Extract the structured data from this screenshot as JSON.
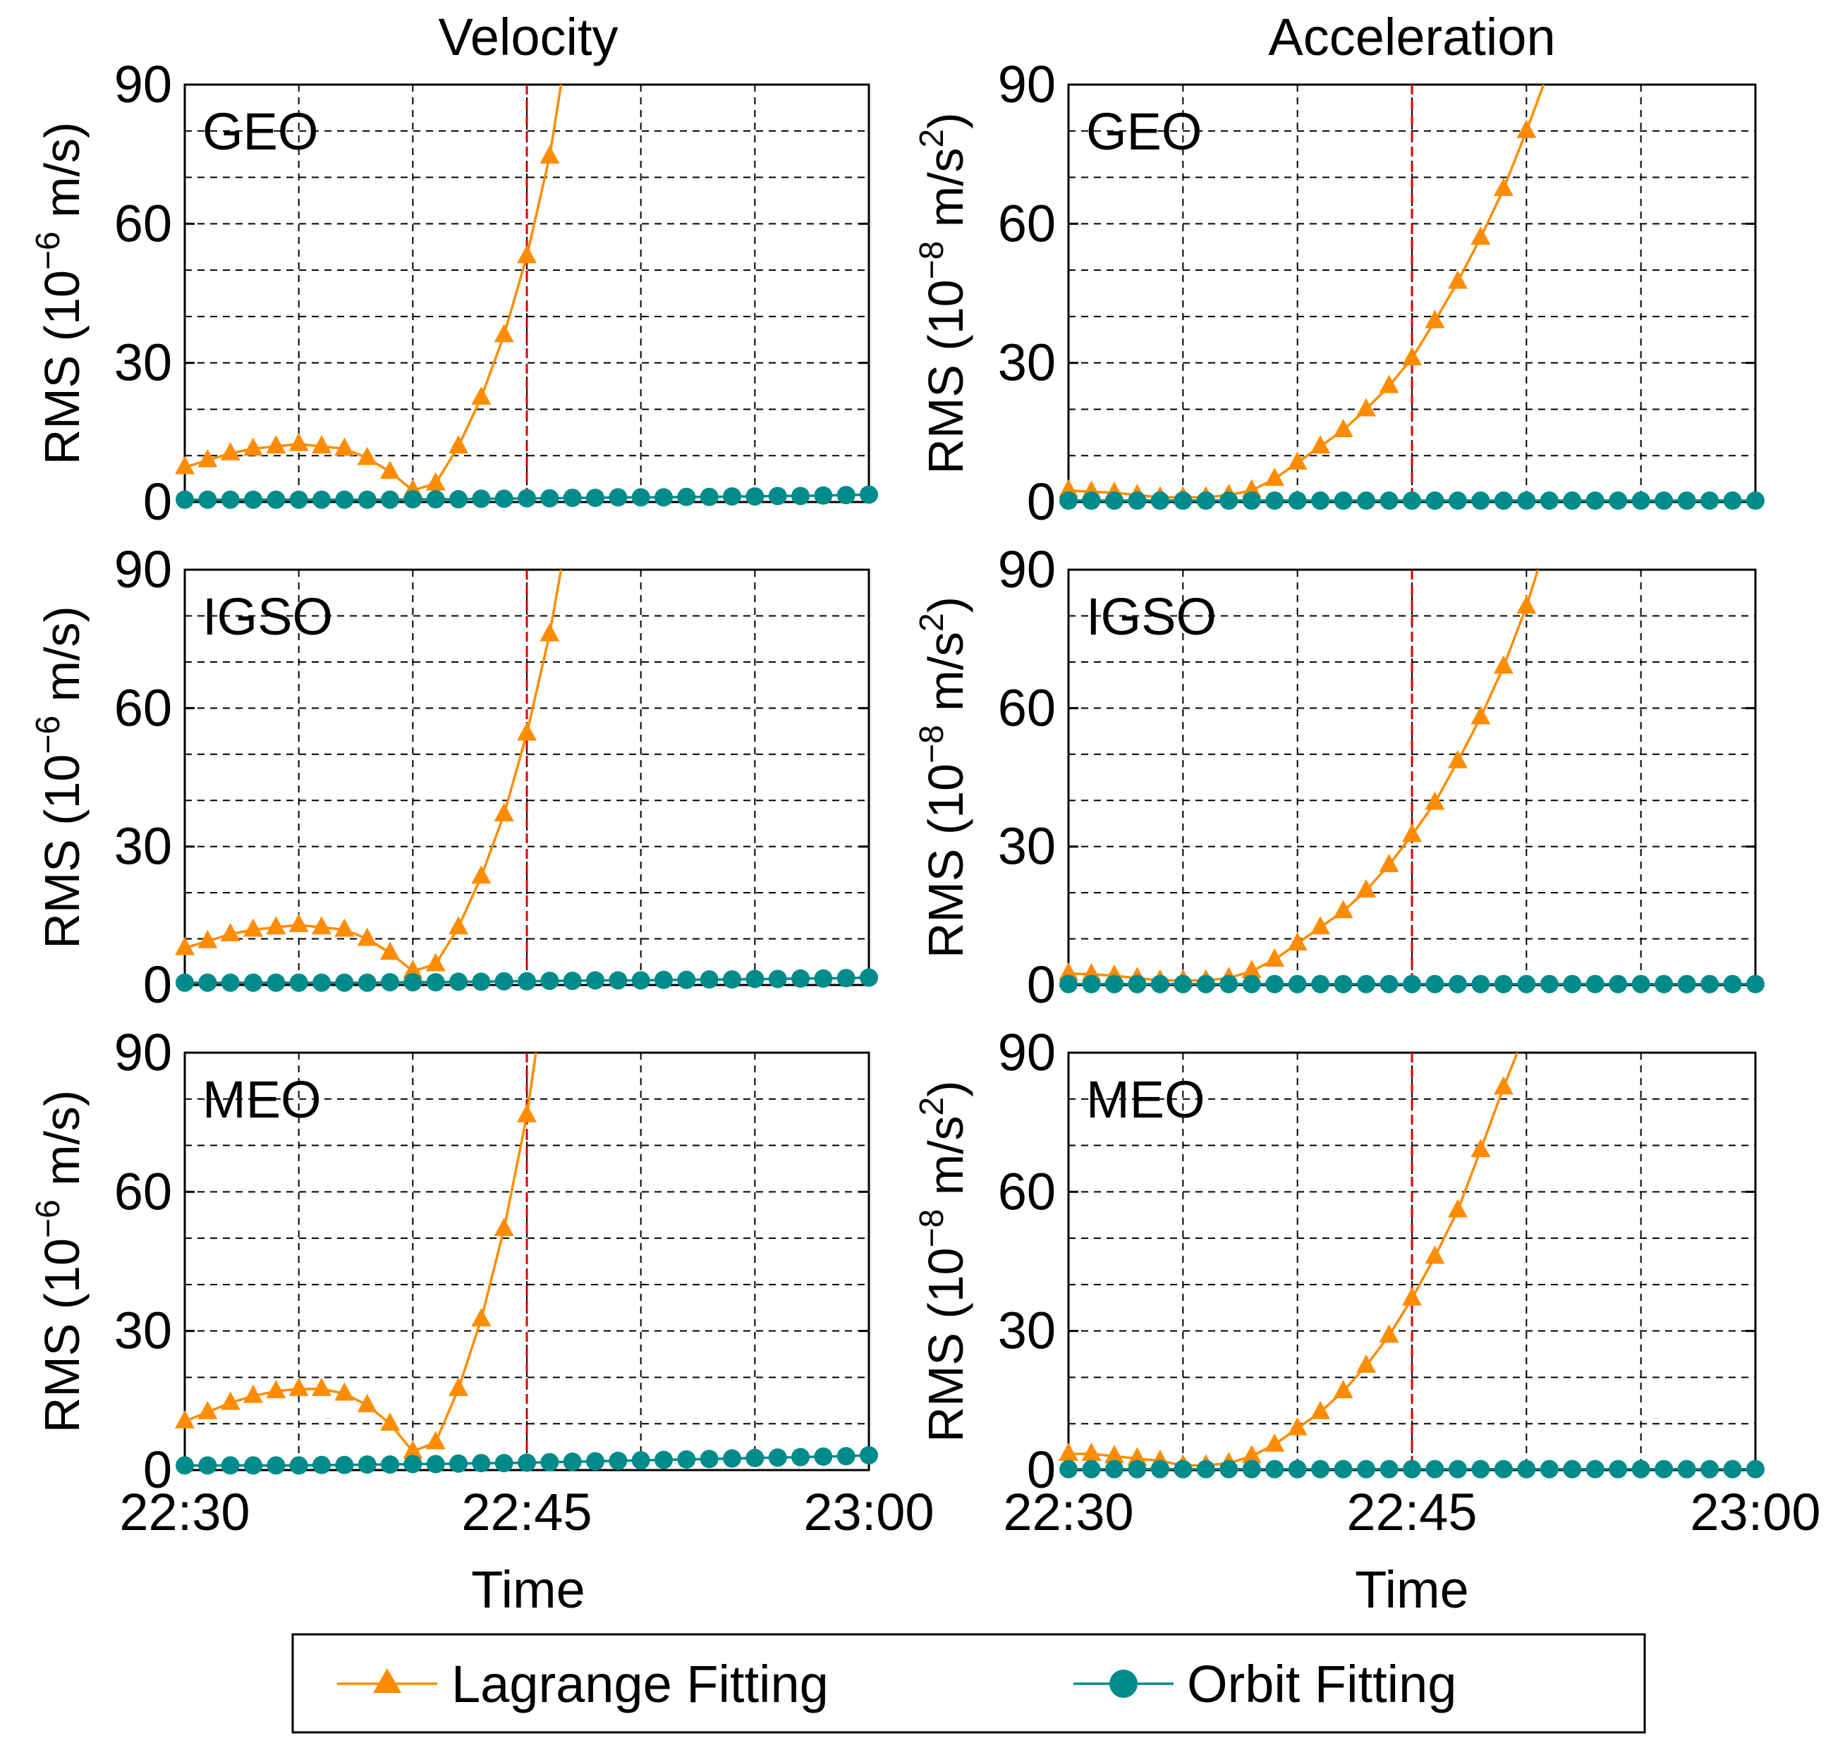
{
  "figure": {
    "column_titles": [
      "Velocity",
      "Acceleration"
    ],
    "x_title": "Time",
    "x_tick_labels": [
      "22:30",
      "22:45",
      "23:00"
    ],
    "y_tick_labels": [
      "0",
      "30",
      "60",
      "90"
    ],
    "y_label_velocity": {
      "base": "RMS (10",
      "exp": "−6",
      "unit": " m/s)"
    },
    "y_label_acceleration": {
      "base": "RMS (10",
      "exp": "−8",
      "unit": " m/s",
      "unit_exp": "2",
      "close": ")"
    },
    "legend": {
      "lagrange": "Lagrange Fitting",
      "orbit": "Orbit Fitting"
    },
    "colors": {
      "lagrange": "#FF8C00",
      "orbit": "#008B8B",
      "event_line": "#E00000",
      "grid": "#000000"
    }
  },
  "chart_data": [
    {
      "type": "line",
      "panel": "Velocity GEO",
      "title": "Velocity",
      "label": "GEO",
      "xlabel": "",
      "ylabel": "RMS (10^-6 m/s)",
      "ylim": [
        0,
        90
      ],
      "xlim": [
        0,
        30
      ],
      "event_x": 15,
      "series": [
        {
          "name": "Lagrange Fitting",
          "marker": "triangle",
          "x": [
            0,
            1,
            2,
            3,
            4,
            5,
            6,
            7,
            8,
            9,
            10,
            11,
            12,
            13,
            14,
            15,
            16,
            16.5
          ],
          "values": [
            7.5,
            9,
            10.5,
            11.5,
            12,
            12.5,
            12,
            11.5,
            9.5,
            6.5,
            2.5,
            4,
            12,
            22.5,
            36,
            53,
            74.5,
            90
          ],
          "marker_x": [
            0,
            1,
            2,
            3,
            4,
            5,
            6,
            7,
            8,
            9,
            10,
            11,
            12,
            13,
            14,
            15,
            16
          ]
        },
        {
          "name": "Orbit Fitting",
          "marker": "circle",
          "x": [
            0,
            1,
            2,
            3,
            4,
            5,
            6,
            7,
            8,
            9,
            10,
            11,
            12,
            13,
            14,
            15,
            16,
            17,
            18,
            19,
            20,
            21,
            22,
            23,
            24,
            25,
            26,
            27,
            28,
            29,
            30
          ],
          "values": [
            0.5,
            0.5,
            0.5,
            0.5,
            0.5,
            0.5,
            0.5,
            0.5,
            0.5,
            0.5,
            0.6,
            0.6,
            0.6,
            0.7,
            0.7,
            0.8,
            0.8,
            0.9,
            0.9,
            1,
            1,
            1,
            1.1,
            1.1,
            1.2,
            1.2,
            1.3,
            1.3,
            1.4,
            1.5,
            1.6
          ]
        }
      ]
    },
    {
      "type": "line",
      "panel": "Acceleration GEO",
      "title": "Acceleration",
      "label": "GEO",
      "xlabel": "",
      "ylabel": "RMS (10^-8 m/s^2)",
      "ylim": [
        0,
        90
      ],
      "xlim": [
        0,
        30
      ],
      "event_x": 15,
      "series": [
        {
          "name": "Lagrange Fitting",
          "marker": "triangle",
          "x": [
            0,
            1,
            2,
            3,
            4,
            5,
            6,
            7,
            8,
            9,
            10,
            11,
            12,
            13,
            14,
            15,
            16,
            17,
            18,
            19,
            20,
            20.75
          ],
          "values": [
            2.5,
            2.2,
            2,
            1.5,
            1,
            1,
            1,
            1.5,
            2.5,
            5,
            8.5,
            12,
            15.5,
            20,
            25,
            31,
            39,
            47.5,
            57,
            67.5,
            80,
            90
          ],
          "marker_x": [
            0,
            1,
            2,
            3,
            4,
            5,
            6,
            7,
            8,
            9,
            10,
            11,
            12,
            13,
            14,
            15,
            16,
            17,
            18,
            19,
            20
          ]
        },
        {
          "name": "Orbit Fitting",
          "marker": "circle",
          "x": [
            0,
            1,
            2,
            3,
            4,
            5,
            6,
            7,
            8,
            9,
            10,
            11,
            12,
            13,
            14,
            15,
            16,
            17,
            18,
            19,
            20,
            21,
            22,
            23,
            24,
            25,
            26,
            27,
            28,
            29,
            30
          ],
          "values": [
            0.3,
            0.3,
            0.3,
            0.3,
            0.3,
            0.3,
            0.3,
            0.3,
            0.3,
            0.3,
            0.3,
            0.3,
            0.3,
            0.3,
            0.3,
            0.3,
            0.3,
            0.3,
            0.3,
            0.3,
            0.3,
            0.3,
            0.3,
            0.3,
            0.3,
            0.3,
            0.3,
            0.3,
            0.3,
            0.3,
            0.3
          ]
        }
      ]
    },
    {
      "type": "line",
      "panel": "Velocity IGSO",
      "label": "IGSO",
      "xlabel": "",
      "ylabel": "RMS (10^-6 m/s)",
      "ylim": [
        0,
        90
      ],
      "xlim": [
        0,
        30
      ],
      "event_x": 15,
      "series": [
        {
          "name": "Lagrange Fitting",
          "marker": "triangle",
          "x": [
            0,
            1,
            2,
            3,
            4,
            5,
            6,
            7,
            8,
            9,
            10,
            11,
            12,
            13,
            14,
            15,
            16,
            16.5
          ],
          "values": [
            8,
            9.5,
            11,
            12,
            12.5,
            13,
            12.5,
            12,
            10,
            7,
            3,
            4.5,
            12.5,
            23.5,
            37,
            54.5,
            76,
            90
          ],
          "marker_x": [
            0,
            1,
            2,
            3,
            4,
            5,
            6,
            7,
            8,
            9,
            10,
            11,
            12,
            13,
            14,
            15,
            16
          ]
        },
        {
          "name": "Orbit Fitting",
          "marker": "circle",
          "x": [
            0,
            1,
            2,
            3,
            4,
            5,
            6,
            7,
            8,
            9,
            10,
            11,
            12,
            13,
            14,
            15,
            16,
            17,
            18,
            19,
            20,
            21,
            22,
            23,
            24,
            25,
            26,
            27,
            28,
            29,
            30
          ],
          "values": [
            0.5,
            0.5,
            0.5,
            0.5,
            0.5,
            0.5,
            0.5,
            0.5,
            0.5,
            0.6,
            0.6,
            0.6,
            0.7,
            0.7,
            0.8,
            0.8,
            0.9,
            0.9,
            1,
            1,
            1,
            1.1,
            1.1,
            1.2,
            1.2,
            1.3,
            1.3,
            1.4,
            1.4,
            1.5,
            1.6
          ]
        }
      ]
    },
    {
      "type": "line",
      "panel": "Acceleration IGSO",
      "label": "IGSO",
      "xlabel": "",
      "ylabel": "RMS (10^-8 m/s^2)",
      "ylim": [
        0,
        90
      ],
      "xlim": [
        0,
        30
      ],
      "event_x": 15,
      "series": [
        {
          "name": "Lagrange Fitting",
          "marker": "triangle",
          "x": [
            0,
            1,
            2,
            3,
            4,
            5,
            6,
            7,
            8,
            9,
            10,
            11,
            12,
            13,
            14,
            15,
            16,
            17,
            18,
            19,
            20,
            20.5
          ],
          "values": [
            2.5,
            2.3,
            2,
            1.5,
            1,
            1,
            1,
            1.5,
            3,
            5.5,
            9,
            12.5,
            16,
            20.5,
            26,
            32.5,
            39.5,
            48.5,
            58,
            69,
            82,
            90
          ],
          "marker_x": [
            0,
            1,
            2,
            3,
            4,
            5,
            6,
            7,
            8,
            9,
            10,
            11,
            12,
            13,
            14,
            15,
            16,
            17,
            18,
            19,
            20
          ]
        },
        {
          "name": "Orbit Fitting",
          "marker": "circle",
          "x": [
            0,
            1,
            2,
            3,
            4,
            5,
            6,
            7,
            8,
            9,
            10,
            11,
            12,
            13,
            14,
            15,
            16,
            17,
            18,
            19,
            20,
            21,
            22,
            23,
            24,
            25,
            26,
            27,
            28,
            29,
            30
          ],
          "values": [
            0.2,
            0.2,
            0.2,
            0.2,
            0.2,
            0.2,
            0.2,
            0.2,
            0.2,
            0.2,
            0.2,
            0.2,
            0.2,
            0.2,
            0.2,
            0.2,
            0.2,
            0.2,
            0.2,
            0.2,
            0.2,
            0.2,
            0.2,
            0.2,
            0.2,
            0.2,
            0.2,
            0.2,
            0.2,
            0.2,
            0.2
          ]
        }
      ]
    },
    {
      "type": "line",
      "panel": "Velocity MEO",
      "label": "MEO",
      "xlabel": "Time",
      "ylabel": "RMS (10^-6 m/s)",
      "ylim": [
        0,
        90
      ],
      "xlim": [
        0,
        30
      ],
      "event_x": 15,
      "series": [
        {
          "name": "Lagrange Fitting",
          "marker": "triangle",
          "x": [
            0,
            1,
            2,
            3,
            4,
            5,
            6,
            7,
            8,
            9,
            10,
            11,
            12,
            13,
            14,
            15,
            15.4
          ],
          "values": [
            10.5,
            12.5,
            14.5,
            16,
            17,
            17.5,
            17.5,
            16.5,
            14,
            10,
            4,
            6,
            17.5,
            32.5,
            52,
            76.5,
            90
          ],
          "marker_x": [
            0,
            1,
            2,
            3,
            4,
            5,
            6,
            7,
            8,
            9,
            10,
            11,
            12,
            13,
            14,
            15
          ]
        },
        {
          "name": "Orbit Fitting",
          "marker": "circle",
          "x": [
            0,
            1,
            2,
            3,
            4,
            5,
            6,
            7,
            8,
            9,
            10,
            11,
            12,
            13,
            14,
            15,
            16,
            17,
            18,
            19,
            20,
            21,
            22,
            23,
            24,
            25,
            26,
            27,
            28,
            29,
            30
          ],
          "values": [
            1,
            1,
            1,
            1,
            1,
            1,
            1.1,
            1.1,
            1.2,
            1.2,
            1.3,
            1.3,
            1.4,
            1.5,
            1.5,
            1.6,
            1.7,
            1.8,
            1.9,
            2,
            2.1,
            2.2,
            2.3,
            2.4,
            2.5,
            2.6,
            2.7,
            2.8,
            2.9,
            3,
            3.2
          ]
        }
      ]
    },
    {
      "type": "line",
      "panel": "Acceleration MEO",
      "label": "MEO",
      "xlabel": "Time",
      "ylabel": "RMS (10^-8 m/s^2)",
      "ylim": [
        0,
        90
      ],
      "xlim": [
        0,
        30
      ],
      "event_x": 15,
      "series": [
        {
          "name": "Lagrange Fitting",
          "marker": "triangle",
          "x": [
            0,
            1,
            2,
            3,
            4,
            5,
            6,
            7,
            8,
            9,
            10,
            11,
            12,
            13,
            14,
            15,
            16,
            17,
            18,
            19,
            19.6
          ],
          "values": [
            3.5,
            3.5,
            3,
            2.5,
            2,
            1,
            1,
            1.5,
            3,
            5.5,
            9,
            12.5,
            17,
            22.5,
            29,
            37,
            46,
            56,
            69,
            82.5,
            90
          ],
          "marker_x": [
            0,
            1,
            2,
            3,
            4,
            5,
            6,
            7,
            8,
            9,
            10,
            11,
            12,
            13,
            14,
            15,
            16,
            17,
            18,
            19
          ]
        },
        {
          "name": "Orbit Fitting",
          "marker": "circle",
          "x": [
            0,
            1,
            2,
            3,
            4,
            5,
            6,
            7,
            8,
            9,
            10,
            11,
            12,
            13,
            14,
            15,
            16,
            17,
            18,
            19,
            20,
            21,
            22,
            23,
            24,
            25,
            26,
            27,
            28,
            29,
            30
          ],
          "values": [
            0.2,
            0.2,
            0.2,
            0.2,
            0.2,
            0.2,
            0.2,
            0.2,
            0.2,
            0.2,
            0.2,
            0.2,
            0.2,
            0.2,
            0.2,
            0.2,
            0.2,
            0.2,
            0.2,
            0.2,
            0.2,
            0.2,
            0.2,
            0.2,
            0.2,
            0.2,
            0.2,
            0.2,
            0.2,
            0.2,
            0.2
          ]
        }
      ]
    }
  ]
}
